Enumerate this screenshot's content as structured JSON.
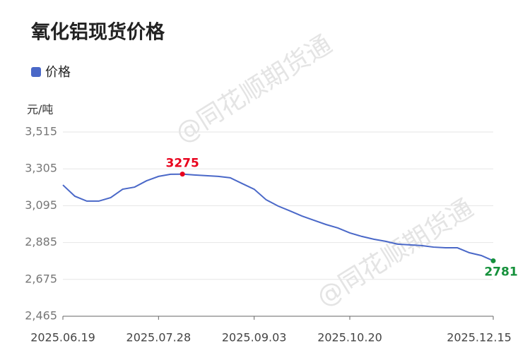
{
  "chart_data": {
    "type": "line",
    "title": "氧化铝现货价格",
    "y_unit": "元/吨",
    "watermark": "@同花顺期货通",
    "categories": [
      "2025.06.19",
      null,
      null,
      null,
      null,
      null,
      null,
      null,
      "2025.07.28",
      null,
      null,
      null,
      null,
      null,
      null,
      null,
      "2025.09.03",
      null,
      null,
      null,
      null,
      null,
      null,
      null,
      "2025.10.20",
      null,
      null,
      null,
      null,
      null,
      null,
      null,
      null,
      null,
      null,
      null,
      "2025.12.15"
    ],
    "series": [
      {
        "name": "价格",
        "color": "#4a68c8",
        "values": [
          3213,
          3149,
          3121,
          3121,
          3141,
          3189,
          3201,
          3237,
          3262,
          3274,
          3275,
          3270,
          3266,
          3262,
          3254,
          3221,
          3189,
          3129,
          3093,
          3065,
          3036,
          3012,
          2988,
          2968,
          2940,
          2920,
          2904,
          2892,
          2876,
          2872,
          2868,
          2859,
          2855,
          2855,
          2827,
          2811,
          2781
        ]
      }
    ],
    "ylim": [
      2465,
      3515
    ],
    "yticks": [
      {
        "value": 2465,
        "label": "2,465"
      },
      {
        "value": 2675,
        "label": "2,675"
      },
      {
        "value": 2885,
        "label": "2,885"
      },
      {
        "value": 3095,
        "label": "3,095"
      },
      {
        "value": 3305,
        "label": "3,305"
      },
      {
        "value": 3515,
        "label": "3,515"
      }
    ],
    "grid": true,
    "max_color": "#e8001c",
    "last_color": "#15913b"
  }
}
